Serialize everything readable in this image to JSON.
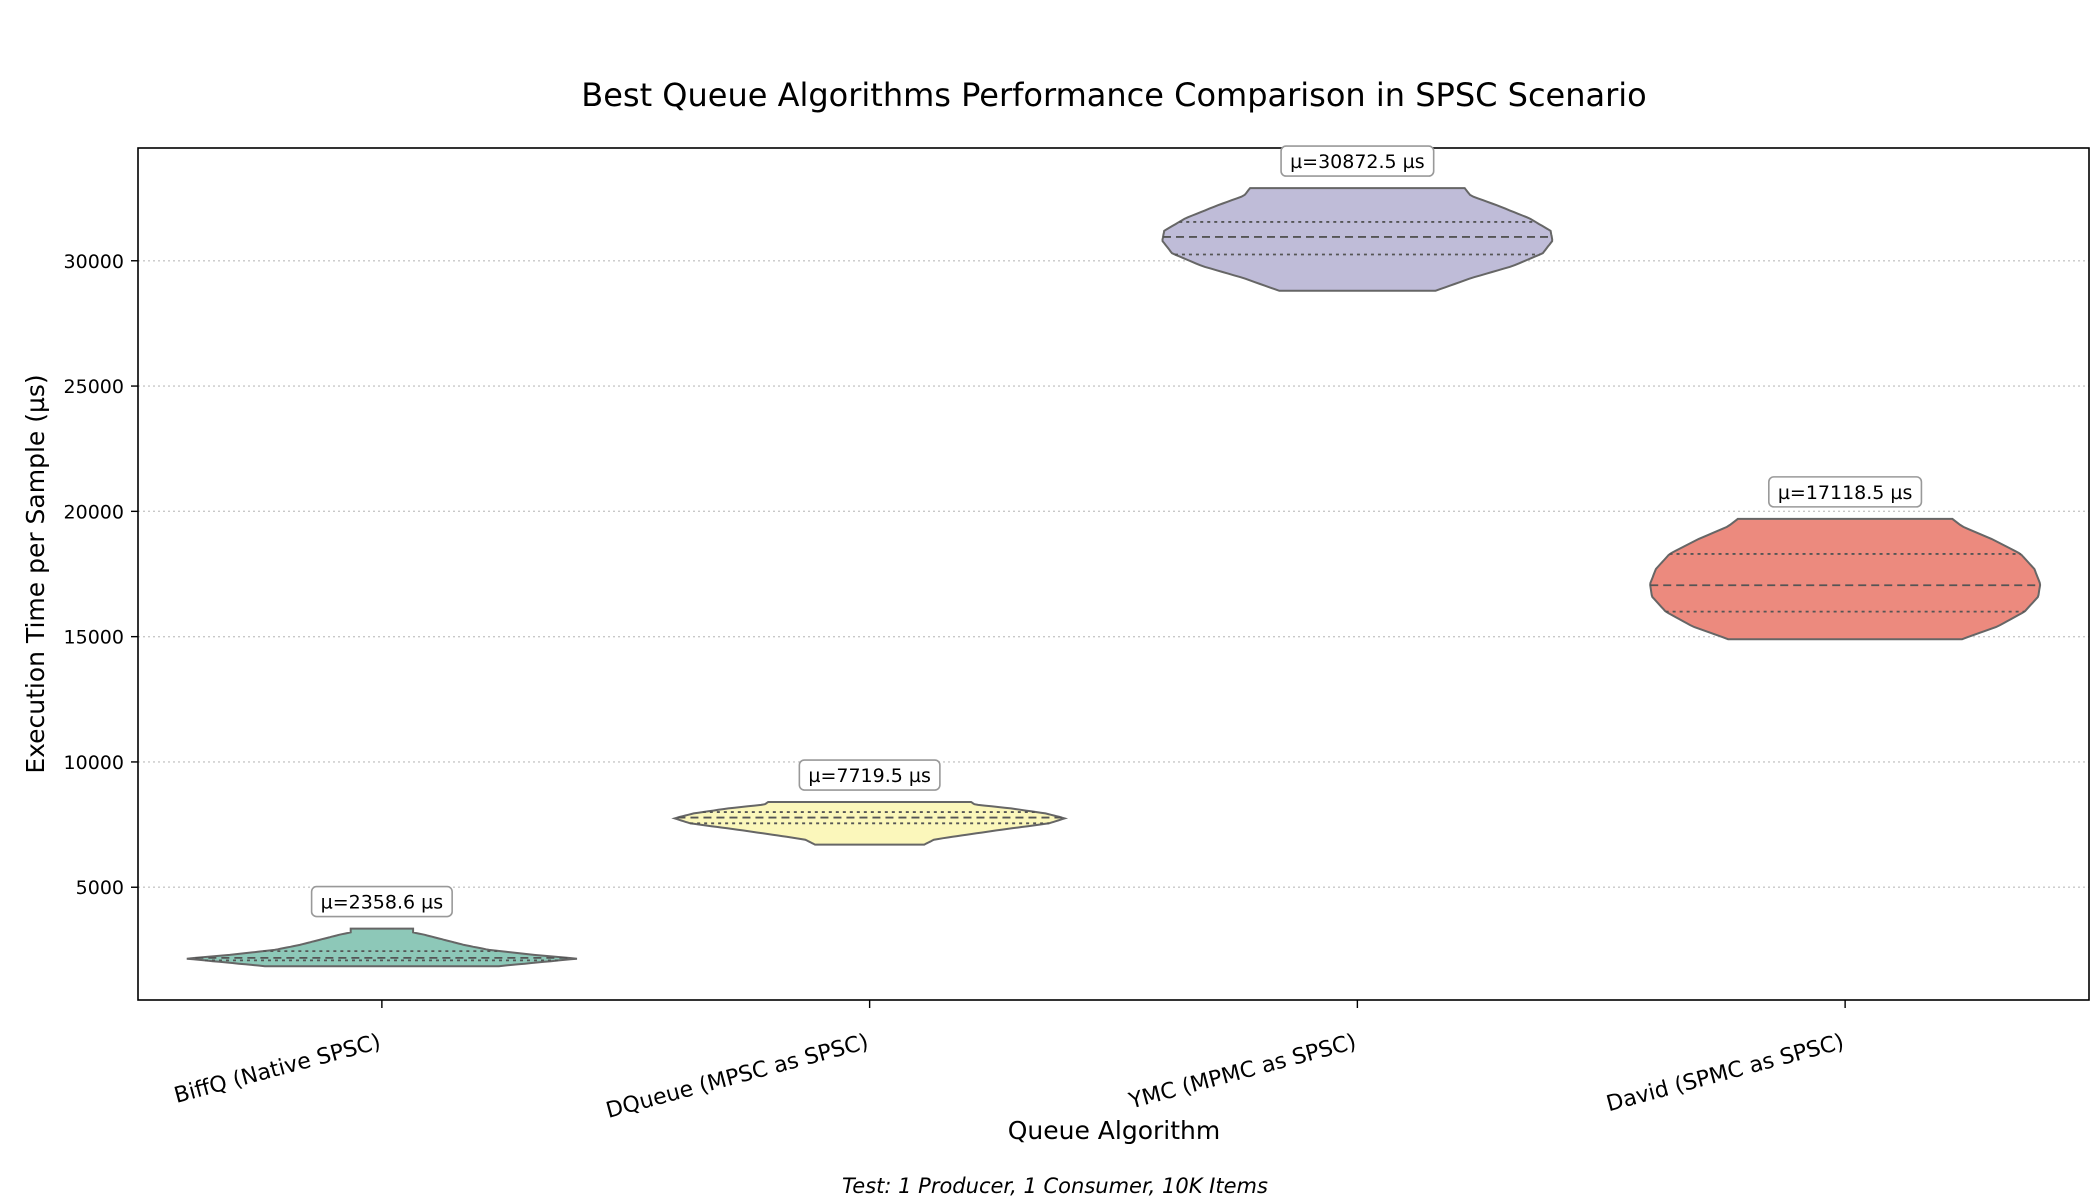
{
  "chart_data": {
    "type": "violin",
    "title": "Best Queue Algorithms Performance Comparison in SPSC Scenario",
    "xlabel": "Queue Algorithm",
    "ylabel": "Execution Time per Sample (µs)",
    "footnote": "Test: 1 Producer, 1 Consumer, 10K Items",
    "ylim": [
      500,
      34500
    ],
    "yticks": [
      5000,
      10000,
      15000,
      20000,
      25000,
      30000
    ],
    "grid": "y-dotted",
    "categories": [
      "BiffQ (Native SPSC)",
      "DQueue (MPSC as SPSC)",
      "YMC (MPMC as SPSC)",
      "David (SPMC as SPSC)"
    ],
    "series": [
      {
        "category": "BiffQ (Native SPSC)",
        "mean_label": "µ=2358.6 µs",
        "color": "#8dc8b8",
        "min": 1850,
        "max": 3350,
        "q1": 2080,
        "median": 2180,
        "q3": 2450,
        "profile": [
          [
            1850,
            0.6
          ],
          [
            2000,
            0.8
          ],
          [
            2150,
            1.0
          ],
          [
            2300,
            0.78
          ],
          [
            2500,
            0.55
          ],
          [
            2700,
            0.42
          ],
          [
            2900,
            0.32
          ],
          [
            3100,
            0.22
          ],
          [
            3200,
            0.16
          ],
          [
            3350,
            0.16
          ]
        ]
      },
      {
        "category": "DQueue (MPSC as SPSC)",
        "mean_label": "µ=7719.5 µs",
        "color": "#fbf7bb",
        "min": 6700,
        "max": 8400,
        "q1": 7550,
        "median": 7780,
        "q3": 8000,
        "profile": [
          [
            6700,
            0.28
          ],
          [
            6900,
            0.33
          ],
          [
            7100,
            0.5
          ],
          [
            7300,
            0.68
          ],
          [
            7550,
            0.92
          ],
          [
            7750,
            1.0
          ],
          [
            7950,
            0.9
          ],
          [
            8150,
            0.72
          ],
          [
            8300,
            0.54
          ],
          [
            8400,
            0.52
          ]
        ]
      },
      {
        "category": "YMC (MPMC as SPSC)",
        "mean_label": "µ=30872.5 µs",
        "color": "#bfbcd8",
        "min": 28800,
        "max": 32900,
        "q1": 30250,
        "median": 30950,
        "q3": 31550,
        "profile": [
          [
            28800,
            0.4
          ],
          [
            29300,
            0.58
          ],
          [
            29800,
            0.8
          ],
          [
            30300,
            0.95
          ],
          [
            30800,
            1.0
          ],
          [
            31200,
            0.99
          ],
          [
            31700,
            0.88
          ],
          [
            32200,
            0.72
          ],
          [
            32600,
            0.58
          ],
          [
            32900,
            0.55
          ]
        ]
      },
      {
        "category": "David (SPMC as SPSC)",
        "mean_label": "µ=17118.5 µs",
        "color": "#ec8a7e",
        "min": 14900,
        "max": 19700,
        "q1": 16000,
        "median": 17050,
        "q3": 18300,
        "profile": [
          [
            14900,
            0.6
          ],
          [
            15400,
            0.78
          ],
          [
            16000,
            0.92
          ],
          [
            16600,
            0.99
          ],
          [
            17100,
            1.0
          ],
          [
            17700,
            0.97
          ],
          [
            18300,
            0.9
          ],
          [
            18900,
            0.75
          ],
          [
            19400,
            0.6
          ],
          [
            19700,
            0.55
          ]
        ]
      }
    ]
  }
}
